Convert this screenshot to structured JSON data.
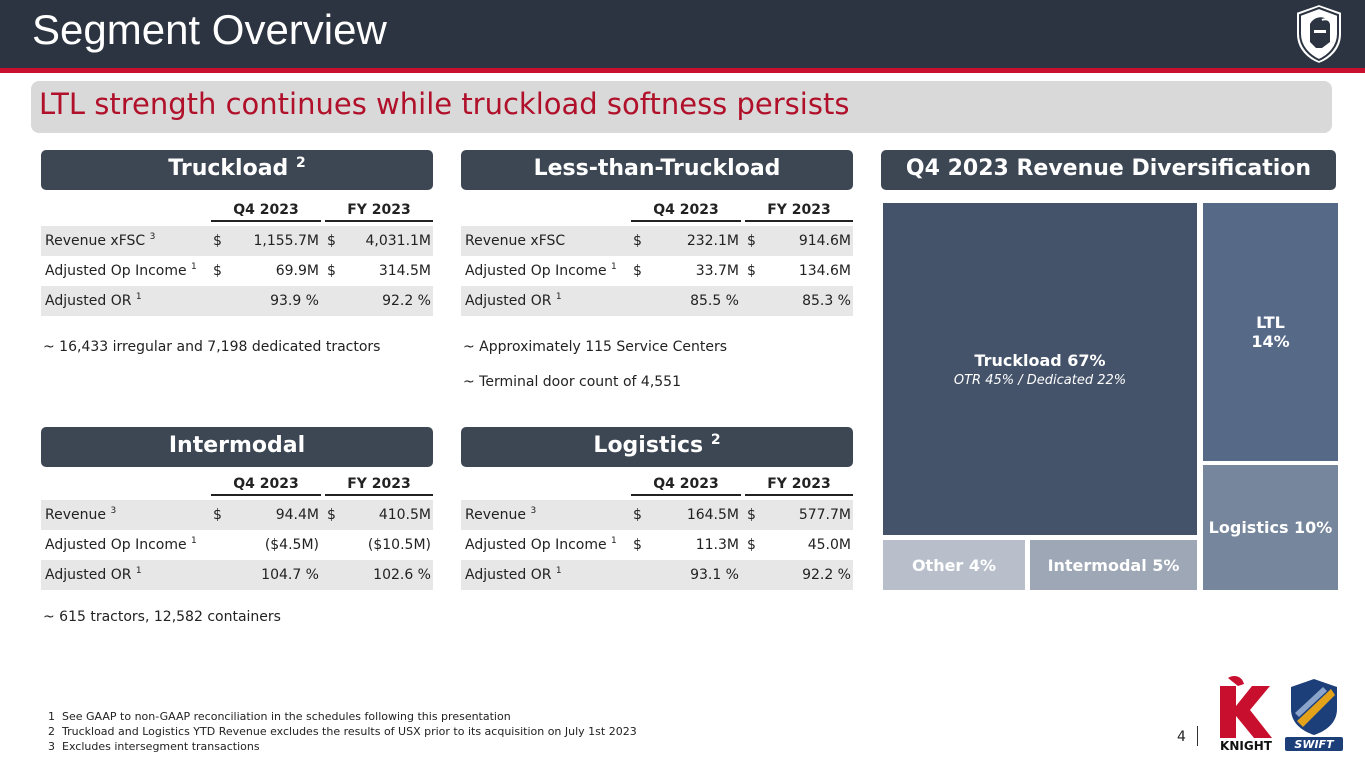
{
  "header": {
    "title": "Segment Overview"
  },
  "subtitle": "LTL strength continues while truckload softness persists",
  "columns": {
    "q4": "Q4 2023",
    "fy": "FY 2023",
    "currency": "$",
    "pct": "%"
  },
  "truckload": {
    "title": "Truckload",
    "sup": "2",
    "rows": [
      {
        "label": "Revenue xFSC",
        "sup": "3",
        "q4": "1,155.7M",
        "fy": "4,031.1M",
        "q4_cur": "$",
        "fy_cur": "$"
      },
      {
        "label": "Adjusted Op Income",
        "sup": "1",
        "q4": "69.9M",
        "fy": "314.5M",
        "q4_cur": "$",
        "fy_cur": "$"
      },
      {
        "label": "Adjusted OR",
        "sup": "1",
        "q4": "93.9 %",
        "fy": "92.2 %",
        "q4_cur": "",
        "fy_cur": ""
      }
    ],
    "notes": [
      "~ 16,433 irregular and 7,198 dedicated tractors"
    ]
  },
  "ltl": {
    "title": "Less-than-Truckload",
    "sup": "",
    "rows": [
      {
        "label": "Revenue xFSC",
        "sup": "",
        "q4": "232.1M",
        "fy": "914.6M",
        "q4_cur": "$",
        "fy_cur": "$"
      },
      {
        "label": "Adjusted Op Income",
        "sup": "1",
        "q4": "33.7M",
        "fy": "134.6M",
        "q4_cur": "$",
        "fy_cur": "$"
      },
      {
        "label": "Adjusted OR",
        "sup": "1",
        "q4": "85.5 %",
        "fy": "85.3 %",
        "q4_cur": "",
        "fy_cur": ""
      }
    ],
    "notes": [
      "~ Approximately 115 Service Centers",
      "~ Terminal door count of 4,551"
    ]
  },
  "intermodal": {
    "title": "Intermodal",
    "sup": "",
    "rows": [
      {
        "label": "Revenue",
        "sup": "3",
        "q4": "94.4M",
        "fy": "410.5M",
        "q4_cur": "$",
        "fy_cur": "$"
      },
      {
        "label": "Adjusted Op Income",
        "sup": "1",
        "q4": "($4.5M)",
        "fy": "($10.5M)",
        "q4_cur": "",
        "fy_cur": ""
      },
      {
        "label": "Adjusted OR",
        "sup": "1",
        "q4": "104.7 %",
        "fy": "102.6 %",
        "q4_cur": "",
        "fy_cur": ""
      }
    ],
    "notes": [
      "~  615 tractors, 12,582 containers"
    ]
  },
  "logistics": {
    "title": "Logistics",
    "sup": "2",
    "rows": [
      {
        "label": "Revenue",
        "sup": "3",
        "q4": "164.5M",
        "fy": "577.7M",
        "q4_cur": "$",
        "fy_cur": "$"
      },
      {
        "label": "Adjusted Op Income",
        "sup": "1",
        "q4": "11.3M",
        "fy": "45.0M",
        "q4_cur": "$",
        "fy_cur": "$"
      },
      {
        "label": "Adjusted OR",
        "sup": "1",
        "q4": "93.1 %",
        "fy": "92.2 %",
        "q4_cur": "",
        "fy_cur": ""
      }
    ],
    "notes": []
  },
  "diversification": {
    "title": "Q4 2023 Revenue Diversification",
    "tiles": {
      "truckload": {
        "label": "Truckload 67%",
        "sub": "OTR 45% / Dedicated 22%",
        "color": "#44536a"
      },
      "ltl": {
        "label": "LTL",
        "label2": "14%",
        "color": "#566a88"
      },
      "logistics": {
        "label": "Logistics 10%",
        "color": "#76869c"
      },
      "other": {
        "label": "Other 4%",
        "color": "#b8bfcb"
      },
      "intermodal": {
        "label": "Intermodal  5%",
        "color": "#9ea7b5"
      }
    }
  },
  "footnotes": [
    {
      "num": "1",
      "text": "See GAAP to non-GAAP reconciliation in the schedules following this presentation"
    },
    {
      "num": "2",
      "text": "Truckload and Logistics  YTD Revenue excludes the results of USX prior to its acquisition on  July 1st 2023"
    },
    {
      "num": "3",
      "text": "Excludes intersegment transactions"
    }
  ],
  "page_number": "4",
  "logos": {
    "knight": "KNIGHT",
    "swift": "SWIFT"
  },
  "icons": {
    "header": "knight-helmet-shield-icon"
  }
}
